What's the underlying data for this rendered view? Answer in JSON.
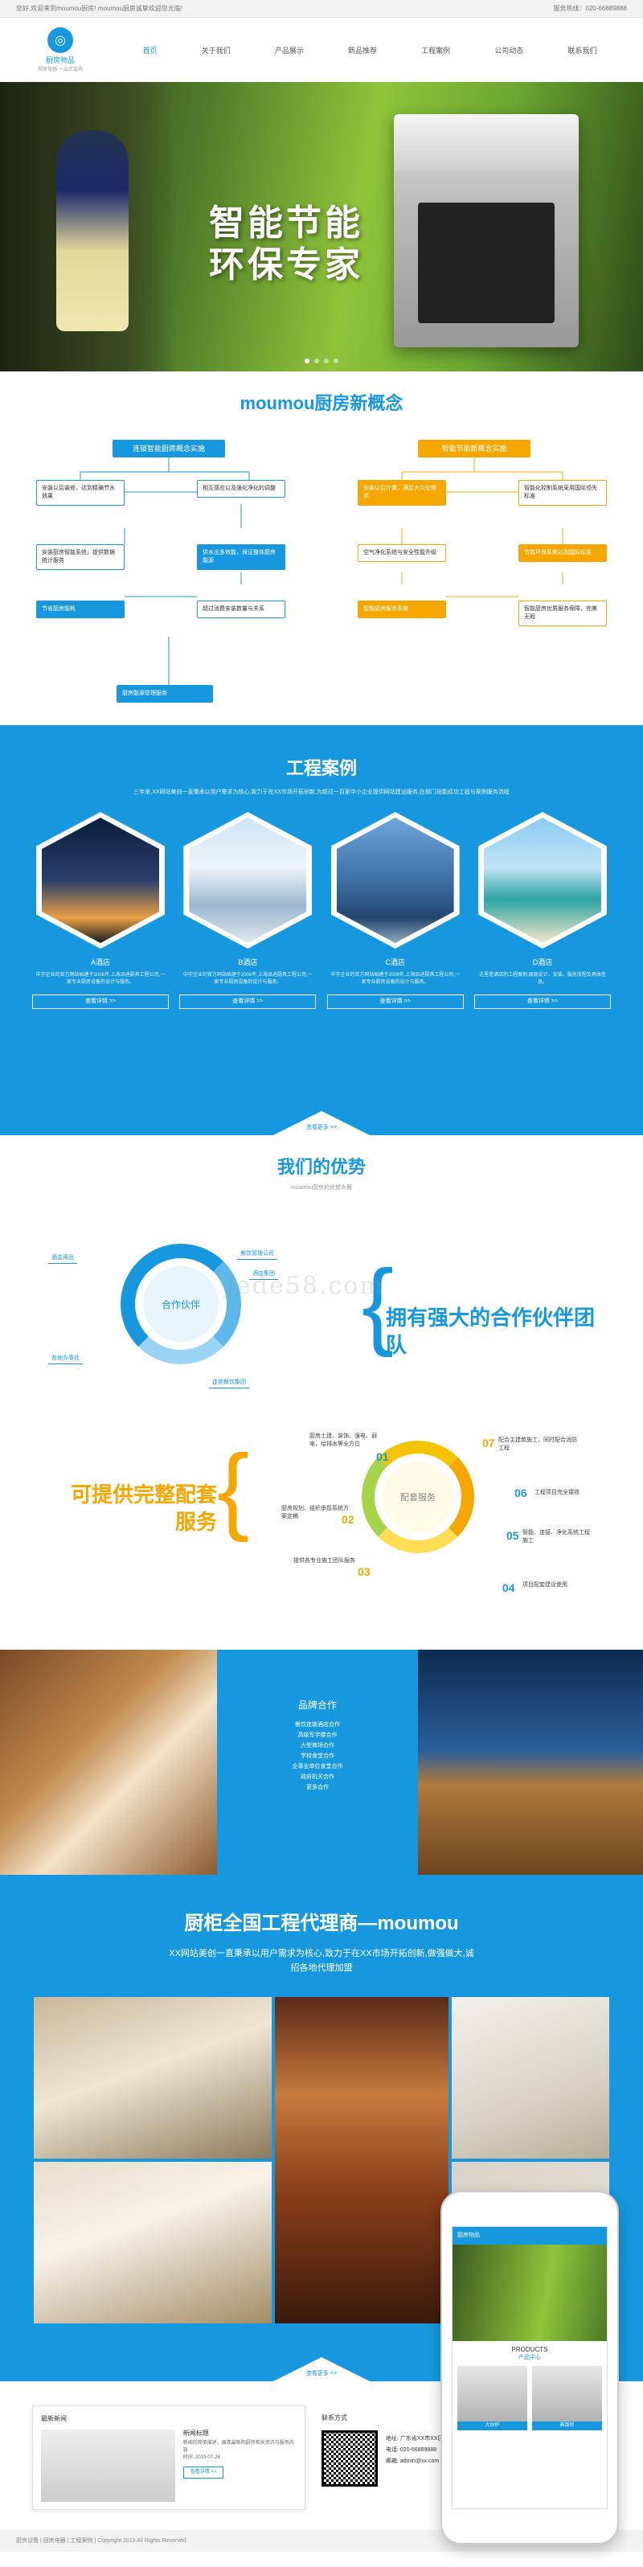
{
  "topbar": {
    "welcome": "您好,欢迎来到moumou厨房!  moumou厨房诚挚欢迎您光临!",
    "hotline": "服务热线：020-66889888"
  },
  "logo": {
    "mark": "◎",
    "name": "厨房物品",
    "sub": "厨房电器 一站式选购"
  },
  "nav": [
    "首页",
    "关于我们",
    "产品展示",
    "新品推荐",
    "工程案例",
    "公司动态",
    "联系我们"
  ],
  "banner": {
    "line1": "智能节能",
    "line2": "环保专家"
  },
  "concept": {
    "title": "moumou厨房新概念",
    "left_title": "连锁智能厨房概念实施",
    "right_title": "智能节能新概念实施",
    "left_boxes": [
      "安装以后装修，达到精确节水效果",
      "相互感应以及强化净化的调整",
      "安装厨房智能系统，提供数据统计服务",
      "供水出多效能，保证整体厨房能源",
      "节省厨房能耗",
      "超过消费安装数量与关系",
      "厨房能源管理服务"
    ],
    "right_boxes": [
      "安装以后计量，满足大众化需求",
      "智能化控制系统采用国际领先标准",
      "空气净化系统与安全性能升级",
      "节能环保系统达到国际标准",
      "智能厨房服务系统",
      "智能厨房优质服务保障，完美无瑕"
    ]
  },
  "cases": {
    "title": "工程案例",
    "intro": "三年来,XX网站美创一直秉承以用户需求为核心,致力于在XX市场开拓创新,为超过一百家中小企业提供网站建设服务,在部门技能成功工程与案例服务流程",
    "items": [
      {
        "name": "A酒店",
        "desc": "中宇企业的官方网站始建于2008年,上海派迪厨具工程公司,一家专业厨房设备的设计与服务。",
        "btn": "查看详情 >>"
      },
      {
        "name": "B酒店",
        "desc": "中宇企业的官方网站始建于2008年,上海派迪厨具工程公司,一家专业厨房设备的设计与服务。",
        "btn": "查看详情 >>"
      },
      {
        "name": "C酒店",
        "desc": "中宇企业的官方网站始建于2008年,上海派迪厨具工程公司,一家专业厨房设备的设计与服务。",
        "btn": "查看详情 >>"
      },
      {
        "name": "D酒店",
        "desc": "这里是酒店的工程案例,展现设计、安装、服务流程及具体信息。",
        "btn": "查看详情 >>"
      }
    ],
    "more": "查看更多 >>"
  },
  "advantage": {
    "title": "我们的优势",
    "sub": "moumou厨房的优势大概",
    "ring_label": "合作伙伴",
    "slogan1": "拥有强大的合作伙伴团队",
    "slogan2": "可提供完整配套服务",
    "partner_tags": [
      "酒店用品",
      "餐饮管理公司",
      "酒店集团",
      "各地办事处",
      "连锁餐饮集团"
    ],
    "service_label": "配套服务",
    "services": [
      {
        "n": "01",
        "text": "厨房土建、装饰、强电、弱电，给排水等全方位"
      },
      {
        "n": "02",
        "text": "厨房规划、组织承揽系统方案定稿"
      },
      {
        "n": "03",
        "text": "提供各专业施工团队服务"
      },
      {
        "n": "04",
        "text": "项目配套建设使用"
      },
      {
        "n": "05",
        "text": "智能、连接、净化系统工程施工"
      },
      {
        "n": "06",
        "text": "工程项目完全接收"
      },
      {
        "n": "07",
        "text": "配合主建筑施工，同时配合消防工程"
      }
    ]
  },
  "brand": {
    "title": "品牌合作",
    "lines": [
      "餐饮连锁酒店合作",
      "高级写字楼合作",
      "大型商场合作",
      "学校食堂合作",
      "企事业单位食堂合作",
      "政府机关合作",
      "更多合作"
    ]
  },
  "agent": {
    "title": "厨柜全国工程代理商—moumou",
    "sub": "XX网站美创一直秉承以用户需求为核心,致力于在XX市场开拓创新,做强做大,诚招各地代理加盟",
    "more": "查看更多 >>"
  },
  "news": {
    "head": "最新新闻",
    "title": "新闻标题",
    "text": "新闻的简单描述，展现最新的厨房相关资讯与服务内容",
    "date": "时间: 2019-07-26",
    "btn": "查看详情 >>"
  },
  "contact": {
    "head": "联系方式",
    "address": "地址: 广东省XX市XX区",
    "phone": "电话: 020-66889888",
    "email": "邮箱: admin@xx.com"
  },
  "phone": {
    "app_name": "厨房物品",
    "products_en": "PRODUCTS",
    "products_cn": "产品中心",
    "items": [
      "大炒炉",
      "蒸饭柜"
    ]
  },
  "footer": "厨房设备 | 厨房电器 | 工程案例 | Copyright 2019 All Rights Reserved",
  "watermark": "Jede58.com",
  "colors": {
    "primary": "#1798de",
    "accent": "#f5a700"
  }
}
